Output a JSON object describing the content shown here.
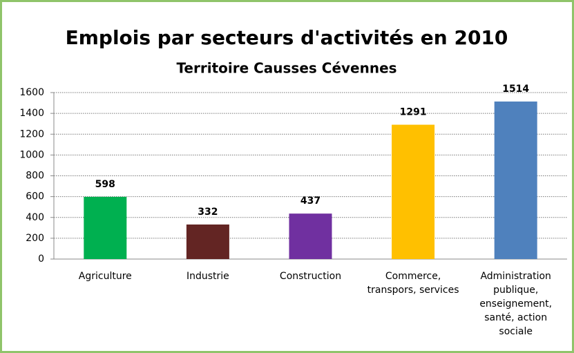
{
  "chart_data": {
    "type": "bar",
    "title": "Emplois par secteurs d'activités en 2010",
    "subtitle": "Territoire Causses  Cévennes",
    "categories": [
      "Agriculture",
      "Industrie",
      "Construction",
      "Commerce, transpors, services",
      "Administration publique, enseignement, santé, action sociale"
    ],
    "values": [
      598,
      332,
      437,
      1291,
      1514
    ],
    "colors": [
      "#00b050",
      "#632523",
      "#7030a0",
      "#ffc000",
      "#4f81bd"
    ],
    "ylim": [
      0,
      1600
    ],
    "yticks": [
      0,
      200,
      400,
      600,
      800,
      1000,
      1200,
      1400,
      1600
    ],
    "grid": true
  }
}
